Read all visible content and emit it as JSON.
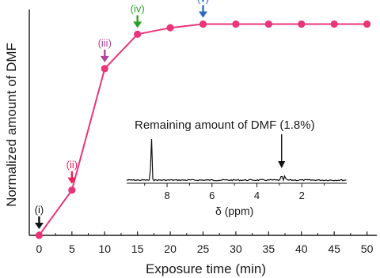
{
  "chart_data": {
    "type": "line",
    "xlabel": "Exposure time (min)",
    "ylabel": "Normalized amount of DMF",
    "xlim": [
      -1.5,
      51.5
    ],
    "ylim": [
      0,
      1.05
    ],
    "x_ticks": [
      "0",
      "5",
      "10",
      "15",
      "20",
      "25",
      "30",
      "35",
      "40",
      "45",
      "50"
    ],
    "grid": false,
    "y_tick_labels_shown": false,
    "series": [
      {
        "color": "#e8357a",
        "x": [
          0,
          5,
          10,
          15,
          20,
          25,
          30,
          35,
          40,
          45,
          50
        ],
        "y": [
          0.0,
          0.21,
          0.775,
          0.935,
          0.965,
          0.982,
          0.982,
          0.982,
          0.982,
          0.982,
          0.982
        ]
      }
    ],
    "annotations": [
      {
        "label": "(i)",
        "x": 0,
        "color": "#111111"
      },
      {
        "label": "(ii)",
        "x": 5,
        "color": "#e8245a"
      },
      {
        "label": "(iii)",
        "x": 10,
        "color": "#b0449b"
      },
      {
        "label": "(iv)",
        "x": 15,
        "color": "#2ca02c"
      },
      {
        "label": "(v)",
        "x": 25,
        "color": "#2f6cc0"
      }
    ],
    "inset": {
      "type": "spectrum",
      "title": "Remaining amount of DMF (1.8%)",
      "xlabel": "δ (ppm)",
      "x_ticks": [
        "8",
        "6",
        "4",
        "2"
      ],
      "xlim": [
        9.8,
        0.0
      ],
      "peaks": [
        {
          "ppm": 8.7,
          "height": 1.0
        },
        {
          "ppm": 2.9,
          "height": 0.12
        },
        {
          "ppm": 2.75,
          "height": 0.1
        }
      ],
      "annotation_ppm": 2.9
    }
  }
}
